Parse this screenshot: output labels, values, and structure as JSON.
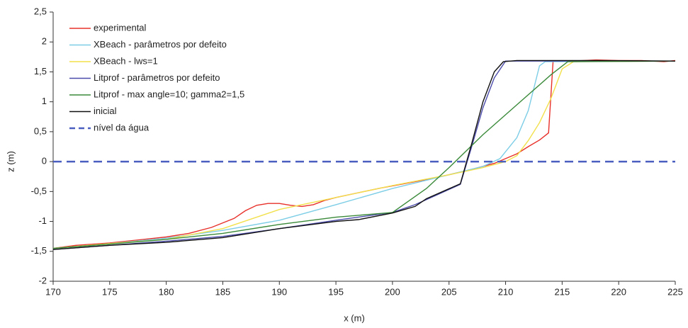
{
  "chart_data": {
    "type": "line",
    "xlabel": "x (m)",
    "ylabel": "z (m)",
    "xlim": [
      170,
      225
    ],
    "xticks": [
      170,
      175,
      180,
      185,
      190,
      195,
      200,
      205,
      210,
      215,
      220,
      225
    ],
    "ylim": [
      -2,
      2.5
    ],
    "yticks": [
      -2,
      {
        "value": -1.5,
        "label": "-1,5"
      },
      -1,
      {
        "value": -0.5,
        "label": "-0,5"
      },
      0,
      {
        "value": 0.5,
        "label": "0,5"
      },
      1,
      {
        "value": 1.5,
        "label": "1,5"
      },
      2,
      {
        "value": 2.5,
        "label": "2,5"
      }
    ],
    "grid": false,
    "legend": "upper left",
    "series": [
      {
        "name": "experimental",
        "color": "#e8302a",
        "x": [
          170,
          172,
          175,
          178,
          180,
          182,
          184,
          186,
          187,
          188,
          189,
          190,
          191,
          192,
          193,
          194,
          195,
          197,
          199,
          201,
          203,
          205,
          207,
          209,
          210,
          211,
          212,
          213,
          213.8,
          214.2,
          216,
          218,
          220,
          222,
          224,
          225
        ],
        "values": [
          -1.45,
          -1.4,
          -1.36,
          -1.3,
          -1.26,
          -1.2,
          -1.1,
          -0.95,
          -0.82,
          -0.73,
          -0.7,
          -0.7,
          -0.73,
          -0.75,
          -0.72,
          -0.65,
          -0.6,
          -0.52,
          -0.44,
          -0.37,
          -0.3,
          -0.22,
          -0.13,
          -0.03,
          0.05,
          0.13,
          0.25,
          0.36,
          0.48,
          1.68,
          1.68,
          1.7,
          1.69,
          1.69,
          1.67,
          1.69
        ]
      },
      {
        "name": "XBeach - parâmetros por defeito",
        "color": "#7ccde6",
        "x": [
          170,
          175,
          180,
          185,
          190,
          195,
          200,
          205,
          208,
          209.5,
          211,
          212,
          213,
          213.5,
          225
        ],
        "values": [
          -1.45,
          -1.37,
          -1.28,
          -1.15,
          -0.98,
          -0.72,
          -0.45,
          -0.22,
          -0.08,
          0.05,
          0.4,
          0.85,
          1.6,
          1.67,
          1.68
        ]
      },
      {
        "name": "XBeach - lws=1",
        "color": "#f2e04a",
        "x": [
          170,
          175,
          180,
          185,
          190,
          195,
          200,
          205,
          208,
          210,
          211,
          212,
          213,
          214,
          215,
          216,
          225
        ],
        "values": [
          -1.45,
          -1.37,
          -1.3,
          -1.12,
          -0.8,
          -0.6,
          -0.4,
          -0.22,
          -0.1,
          0,
          0.1,
          0.35,
          0.65,
          1.05,
          1.55,
          1.67,
          1.68
        ]
      },
      {
        "name": "Litprof - parâmetros por defeito",
        "color": "#4a4aaa",
        "x": [
          170,
          175,
          180,
          185,
          190,
          195,
          200,
          202,
          204,
          206,
          207,
          208,
          209,
          210,
          225
        ],
        "values": [
          -1.47,
          -1.4,
          -1.33,
          -1.25,
          -1.12,
          -0.98,
          -0.85,
          -0.72,
          -0.55,
          -0.38,
          0.25,
          0.9,
          1.4,
          1.68,
          1.68
        ]
      },
      {
        "name": "Litprof - max angle=10; gamma2=1,5",
        "color": "#3a8a3a",
        "x": [
          170,
          175,
          180,
          185,
          190,
          195,
          200,
          203,
          205,
          208,
          211,
          214,
          215.5,
          225
        ],
        "values": [
          -1.45,
          -1.38,
          -1.3,
          -1.2,
          -1.05,
          -0.93,
          -0.85,
          -0.45,
          -0.1,
          0.45,
          0.95,
          1.45,
          1.67,
          1.68
        ]
      },
      {
        "name": "inicial",
        "color": "#111111",
        "x": [
          170,
          175,
          180,
          185,
          190,
          195,
          197,
          200,
          202,
          203,
          206,
          207,
          208,
          209,
          209.8,
          211,
          218,
          225
        ],
        "values": [
          -1.47,
          -1.4,
          -1.35,
          -1.27,
          -1.12,
          -1.0,
          -0.97,
          -0.86,
          -0.75,
          -0.62,
          -0.37,
          0.3,
          1.0,
          1.5,
          1.67,
          1.69,
          1.69,
          1.68
        ]
      },
      {
        "name": "nível da água",
        "color": "#4a5fc0",
        "dashed": true,
        "x": [
          170,
          225
        ],
        "values": [
          0,
          0
        ]
      }
    ]
  }
}
